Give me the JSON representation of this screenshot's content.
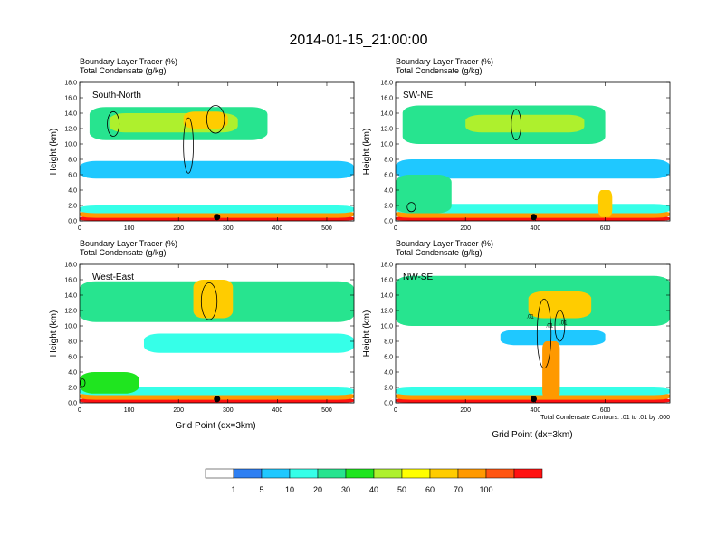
{
  "title": "2014-01-15_21:00:00",
  "xlabel": "Grid Point (dx=3km)",
  "footnote": "Total Condensate Contours: .01 to .01 by .000",
  "colorbar": {
    "levels": [
      "1",
      "5",
      "10",
      "20",
      "30",
      "40",
      "50",
      "60",
      "70",
      "100"
    ],
    "colors": [
      "#ffffff",
      "#2e7ff2",
      "#1fc8ff",
      "#36ffe8",
      "#27e48f",
      "#1fe51f",
      "#aef02d",
      "#ffff00",
      "#ffcc00",
      "#ff9900",
      "#ff5511",
      "#ff1111"
    ]
  },
  "chart_data": [
    {
      "type": "filled-contour",
      "id": "south-north",
      "title_lines": [
        "Boundary Layer Tracer   (%)",
        "Total Condensate   (g/kg)"
      ],
      "label": "South-North",
      "ylabel": "Height (km)",
      "yticks": [
        "0.0",
        "2.0",
        "4.0",
        "6.0",
        "8.0",
        "10.0",
        "12.0",
        "14.0",
        "16.0",
        "18.0"
      ],
      "ylim": [
        0,
        18
      ],
      "xticks": [
        0,
        100,
        200,
        300,
        400,
        500
      ],
      "xlim": [
        0,
        555
      ],
      "marker_x": 278,
      "bands": [
        {
          "x": [
            0,
            555
          ],
          "y": [
            0,
            0.6
          ],
          "level": 11
        },
        {
          "x": [
            0,
            555
          ],
          "y": [
            0.4,
            1.3
          ],
          "level": 9
        },
        {
          "x": [
            0,
            555
          ],
          "y": [
            1.0,
            2.0
          ],
          "level": 3
        },
        {
          "x": [
            0,
            555
          ],
          "y": [
            5.5,
            7.8
          ],
          "level": 2
        },
        {
          "x": [
            20,
            380
          ],
          "y": [
            10.5,
            14.8
          ],
          "level": 4
        },
        {
          "x": [
            60,
            320
          ],
          "y": [
            11.5,
            14.0
          ],
          "level": 6
        },
        {
          "x": [
            210,
            300
          ],
          "y": [
            12.0,
            14.2
          ],
          "level": 8
        }
      ],
      "contours": [
        {
          "cx": 68,
          "cy": 12.6,
          "rx": 12,
          "ry": 1.6
        },
        {
          "cx": 220,
          "cy": 9.8,
          "rx": 10,
          "ry": 3.6
        },
        {
          "cx": 275,
          "cy": 13.2,
          "rx": 18,
          "ry": 1.8
        }
      ]
    },
    {
      "type": "filled-contour",
      "id": "sw-ne",
      "title_lines": [
        "Boundary Layer Tracer   (%)",
        "Total Condensate   (g/kg)"
      ],
      "label": "SW-NE",
      "ylabel": "Height (km)",
      "yticks": [
        "0.0",
        "2.0",
        "4.0",
        "6.0",
        "8.0",
        "10.0",
        "12.0",
        "14.0",
        "16.0",
        "18.0"
      ],
      "ylim": [
        0,
        18
      ],
      "xticks": [
        0,
        200,
        400,
        600
      ],
      "xlim": [
        0,
        785
      ],
      "marker_x": 395,
      "bands": [
        {
          "x": [
            0,
            785
          ],
          "y": [
            0,
            0.6
          ],
          "level": 11
        },
        {
          "x": [
            0,
            785
          ],
          "y": [
            0.4,
            1.3
          ],
          "level": 9
        },
        {
          "x": [
            0,
            785
          ],
          "y": [
            1.0,
            2.2
          ],
          "level": 3
        },
        {
          "x": [
            0,
            785
          ],
          "y": [
            5.5,
            8.0
          ],
          "level": 2
        },
        {
          "x": [
            0,
            160
          ],
          "y": [
            1.0,
            6.0
          ],
          "level": 4
        },
        {
          "x": [
            20,
            600
          ],
          "y": [
            10.0,
            15.0
          ],
          "level": 4
        },
        {
          "x": [
            200,
            540
          ],
          "y": [
            11.5,
            13.8
          ],
          "level": 6
        },
        {
          "x": [
            580,
            620
          ],
          "y": [
            0.5,
            4.0
          ],
          "level": 8
        }
      ],
      "contours": [
        {
          "cx": 345,
          "cy": 12.5,
          "rx": 14,
          "ry": 2.0
        },
        {
          "cx": 45,
          "cy": 1.8,
          "rx": 12,
          "ry": 0.6
        }
      ]
    },
    {
      "type": "filled-contour",
      "id": "west-east",
      "title_lines": [
        "Boundary Layer Tracer   (%)",
        "Total Condensate   (g/kg)"
      ],
      "label": "West-East",
      "ylabel": "Height (km)",
      "yticks": [
        "0.0",
        "2.0",
        "4.0",
        "6.0",
        "8.0",
        "10.0",
        "12.0",
        "14.0",
        "16.0",
        "18.0"
      ],
      "ylim": [
        0,
        18
      ],
      "xticks": [
        0,
        100,
        200,
        300,
        400,
        500
      ],
      "xlim": [
        0,
        555
      ],
      "marker_x": 278,
      "bands": [
        {
          "x": [
            0,
            555
          ],
          "y": [
            0,
            0.6
          ],
          "level": 11
        },
        {
          "x": [
            0,
            555
          ],
          "y": [
            0.4,
            1.3
          ],
          "level": 9
        },
        {
          "x": [
            0,
            555
          ],
          "y": [
            1.0,
            2.0
          ],
          "level": 3
        },
        {
          "x": [
            0,
            120
          ],
          "y": [
            1.2,
            4.0
          ],
          "level": 5
        },
        {
          "x": [
            130,
            555
          ],
          "y": [
            6.5,
            9.0
          ],
          "level": 3
        },
        {
          "x": [
            0,
            555
          ],
          "y": [
            10.5,
            15.8
          ],
          "level": 4
        },
        {
          "x": [
            230,
            310
          ],
          "y": [
            11.0,
            16.0
          ],
          "level": 8
        }
      ],
      "contours": [
        {
          "cx": 262,
          "cy": 13.2,
          "rx": 16,
          "ry": 2.4
        },
        {
          "cx": 6,
          "cy": 2.6,
          "rx": 5,
          "ry": 0.5
        }
      ]
    },
    {
      "type": "filled-contour",
      "id": "nw-se",
      "title_lines": [
        "Boundary Layer Tracer   (%)",
        "Total Condensate   (g/kg)"
      ],
      "label": "NW-SE",
      "ylabel": "Height (km)",
      "yticks": [
        "0.0",
        "2.0",
        "4.0",
        "6.0",
        "8.0",
        "10.0",
        "12.0",
        "14.0",
        "16.0",
        "18.0"
      ],
      "ylim": [
        0,
        18
      ],
      "xticks": [
        0,
        200,
        400,
        600
      ],
      "xlim": [
        0,
        785
      ],
      "marker_x": 395,
      "bands": [
        {
          "x": [
            0,
            785
          ],
          "y": [
            0,
            0.6
          ],
          "level": 11
        },
        {
          "x": [
            0,
            785
          ],
          "y": [
            0.4,
            1.3
          ],
          "level": 9
        },
        {
          "x": [
            0,
            785
          ],
          "y": [
            1.0,
            2.0
          ],
          "level": 3
        },
        {
          "x": [
            0,
            785
          ],
          "y": [
            10.0,
            16.5
          ],
          "level": 4
        },
        {
          "x": [
            300,
            600
          ],
          "y": [
            7.5,
            9.5
          ],
          "level": 2
        },
        {
          "x": [
            380,
            560
          ],
          "y": [
            11.0,
            14.5
          ],
          "level": 8
        },
        {
          "x": [
            420,
            470
          ],
          "y": [
            0.5,
            8.0
          ],
          "level": 9
        }
      ],
      "contour_labels": [
        {
          "x": 385,
          "y": 11.0,
          "text": ".01"
        },
        {
          "x": 440,
          "y": 9.8,
          "text": ".01"
        },
        {
          "x": 480,
          "y": 10.2,
          "text": ".01"
        }
      ],
      "contours": [
        {
          "cx": 425,
          "cy": 9.0,
          "rx": 20,
          "ry": 4.5
        },
        {
          "cx": 470,
          "cy": 10.0,
          "rx": 14,
          "ry": 2.0
        }
      ]
    }
  ]
}
